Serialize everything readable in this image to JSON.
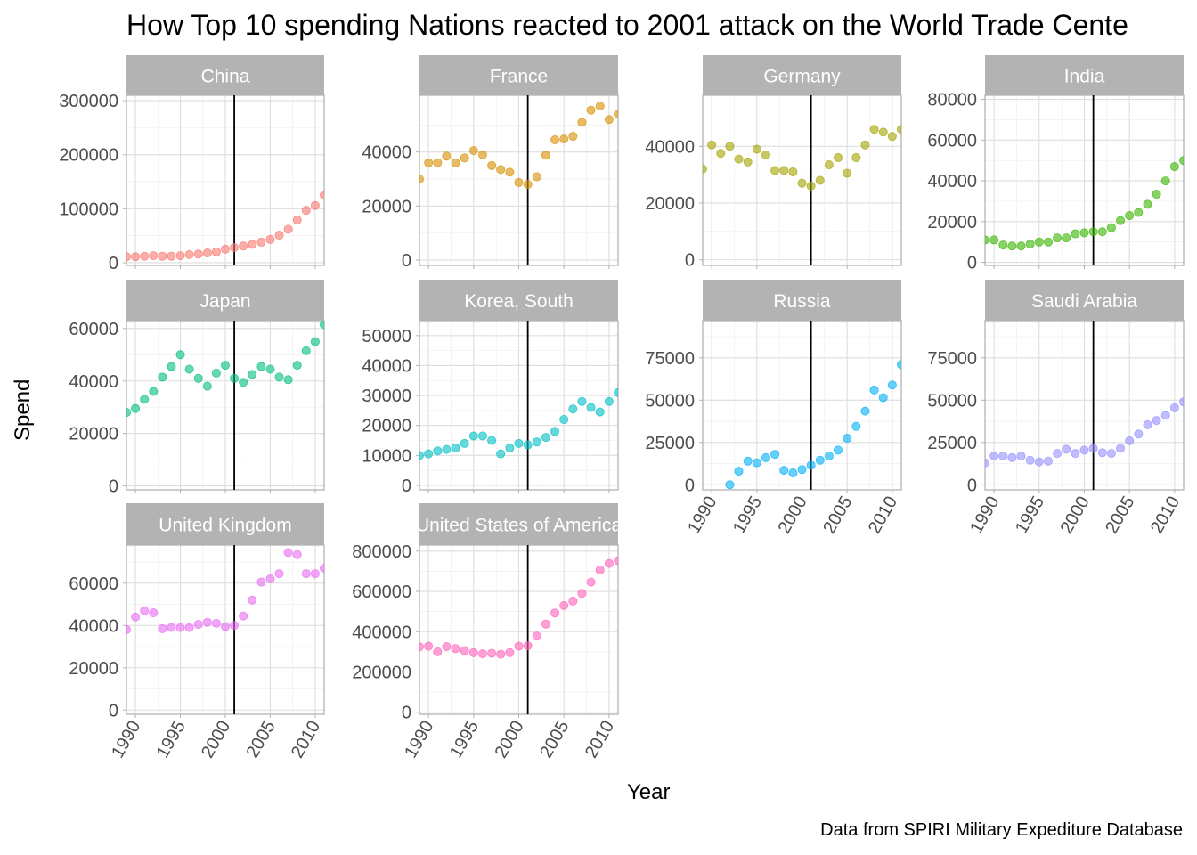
{
  "title": "How Top 10 spending Nations reacted to 2001 attack on the World Trade Cente",
  "caption": "Data from SPIRI Military Expediture Database",
  "chart_data": {
    "type": "scatter",
    "title": "How Top 10 spending Nations reacted to 2001 attack on the World Trade Cente",
    "xlabel": "Year",
    "ylabel": "Spend",
    "xlim": [
      1989,
      2011
    ],
    "x_ticks": [
      1990,
      1995,
      2000,
      2005,
      2010
    ],
    "vline_x": 2001,
    "facets": [
      {
        "name": "China",
        "color": "#F8766D",
        "ylim": [
          -5000,
          310000
        ],
        "y_ticks": [
          0,
          100000,
          200000,
          300000
        ],
        "x": [
          1989,
          1990,
          1991,
          1992,
          1993,
          1994,
          1995,
          1996,
          1997,
          1998,
          1999,
          2000,
          2001,
          2002,
          2003,
          2004,
          2005,
          2006,
          2007,
          2008,
          2009,
          2010,
          2011
        ],
        "y": [
          11000,
          11000,
          12000,
          13000,
          12000,
          12000,
          13000,
          15000,
          16000,
          18000,
          20000,
          25000,
          28000,
          31000,
          34000,
          38000,
          43000,
          51000,
          62000,
          79000,
          97000,
          106000,
          125000
        ]
      },
      {
        "name": "France",
        "color": "#D89000",
        "ylim": [
          -2000,
          61000
        ],
        "y_ticks": [
          0,
          20000,
          40000
        ],
        "x": [
          1989,
          1990,
          1991,
          1992,
          1993,
          1994,
          1995,
          1996,
          1997,
          1998,
          1999,
          2000,
          2001,
          2002,
          2003,
          2004,
          2005,
          2006,
          2007,
          2008,
          2009,
          2010,
          2011
        ],
        "y": [
          30000,
          36000,
          36000,
          38500,
          36000,
          37800,
          40500,
          39000,
          35000,
          33500,
          32500,
          28700,
          28000,
          30800,
          38800,
          44500,
          44800,
          45800,
          51000,
          55500,
          57000,
          52000,
          54000
        ]
      },
      {
        "name": "Germany",
        "color": "#A3A500",
        "ylim": [
          -2000,
          58000
        ],
        "y_ticks": [
          0,
          20000,
          40000
        ],
        "x": [
          1989,
          1990,
          1991,
          1992,
          1993,
          1994,
          1995,
          1996,
          1997,
          1998,
          1999,
          2000,
          2001,
          2002,
          2003,
          2004,
          2005,
          2006,
          2007,
          2008,
          2009,
          2010,
          2011
        ],
        "y": [
          32000,
          40500,
          37500,
          40000,
          35500,
          34500,
          39000,
          37000,
          31500,
          31500,
          31000,
          27000,
          26000,
          28000,
          33500,
          36000,
          30500,
          36000,
          40500,
          46000,
          45000,
          43500,
          46000
        ]
      },
      {
        "name": "India",
        "color": "#39B600",
        "ylim": [
          -1500,
          82000
        ],
        "y_ticks": [
          0,
          20000,
          40000,
          60000,
          80000
        ],
        "x": [
          1989,
          1990,
          1991,
          1992,
          1993,
          1994,
          1995,
          1996,
          1997,
          1998,
          1999,
          2000,
          2001,
          2002,
          2003,
          2004,
          2005,
          2006,
          2007,
          2008,
          2009,
          2010,
          2011
        ],
        "y": [
          11000,
          11000,
          8500,
          8000,
          8000,
          9000,
          10000,
          10000,
          12000,
          12000,
          14000,
          14500,
          15000,
          15000,
          17000,
          20500,
          23000,
          24500,
          28500,
          33500,
          40000,
          47000,
          50000
        ]
      },
      {
        "name": "Japan",
        "color": "#00BF7D",
        "ylim": [
          -1500,
          63000
        ],
        "y_ticks": [
          0,
          20000,
          40000,
          60000
        ],
        "x": [
          1989,
          1990,
          1991,
          1992,
          1993,
          1994,
          1995,
          1996,
          1997,
          1998,
          1999,
          2000,
          2001,
          2002,
          2003,
          2004,
          2005,
          2006,
          2007,
          2008,
          2009,
          2010,
          2011
        ],
        "y": [
          28000,
          29500,
          33000,
          36000,
          41500,
          45500,
          50000,
          44500,
          41000,
          38000,
          43000,
          46000,
          41000,
          39500,
          42500,
          45500,
          44500,
          41500,
          40500,
          46000,
          51500,
          55000,
          61500
        ]
      },
      {
        "name": "Korea, South",
        "color": "#00BFC4",
        "ylim": [
          -1500,
          55000
        ],
        "y_ticks": [
          0,
          10000,
          20000,
          30000,
          40000,
          50000
        ],
        "x": [
          1989,
          1990,
          1991,
          1992,
          1993,
          1994,
          1995,
          1996,
          1997,
          1998,
          1999,
          2000,
          2001,
          2002,
          2003,
          2004,
          2005,
          2006,
          2007,
          2008,
          2009,
          2010,
          2011
        ],
        "y": [
          10000,
          10500,
          11500,
          12000,
          12500,
          14000,
          16500,
          16500,
          15000,
          10500,
          12500,
          14000,
          13500,
          14500,
          16000,
          18000,
          22000,
          25500,
          28000,
          26000,
          24500,
          28000,
          31000
        ]
      },
      {
        "name": "Russia",
        "color": "#00B0F6",
        "ylim": [
          -3000,
          97000
        ],
        "y_ticks": [
          0,
          25000,
          50000,
          75000
        ],
        "x": [
          1992,
          1993,
          1994,
          1995,
          1996,
          1997,
          1998,
          1999,
          2000,
          2001,
          2002,
          2003,
          2004,
          2005,
          2006,
          2007,
          2008,
          2009,
          2010,
          2011
        ],
        "y": [
          0,
          8000,
          14000,
          13000,
          16000,
          18000,
          8500,
          7000,
          9000,
          11500,
          14500,
          17000,
          20500,
          27500,
          34500,
          43500,
          56000,
          51500,
          59000,
          71000
        ]
      },
      {
        "name": "Saudi Arabia",
        "color": "#9590FF",
        "ylim": [
          -3000,
          97000
        ],
        "y_ticks": [
          0,
          25000,
          50000,
          75000
        ],
        "x": [
          1989,
          1990,
          1991,
          1992,
          1993,
          1994,
          1995,
          1996,
          1997,
          1998,
          1999,
          2000,
          2001,
          2002,
          2003,
          2004,
          2005,
          2006,
          2007,
          2008,
          2009,
          2010,
          2011
        ],
        "y": [
          13000,
          17000,
          17000,
          16000,
          17000,
          14500,
          13500,
          14000,
          18500,
          21000,
          18500,
          20500,
          21500,
          19000,
          18500,
          21500,
          26000,
          30000,
          35500,
          38000,
          41000,
          45500,
          49000
        ]
      },
      {
        "name": "United Kingdom",
        "color": "#E76BF3",
        "ylim": [
          -2000,
          78000
        ],
        "y_ticks": [
          0,
          20000,
          40000,
          60000
        ],
        "x": [
          1989,
          1990,
          1991,
          1992,
          1993,
          1994,
          1995,
          1996,
          1997,
          1998,
          1999,
          2000,
          2001,
          2002,
          2003,
          2004,
          2005,
          2006,
          2007,
          2008,
          2009,
          2010,
          2011
        ],
        "y": [
          38000,
          44000,
          47000,
          46000,
          38500,
          39000,
          39000,
          39000,
          40500,
          41500,
          41000,
          39500,
          40000,
          44500,
          52000,
          60500,
          62000,
          64500,
          74500,
          73500,
          64500,
          64500,
          67000
        ]
      },
      {
        "name": "United States of America",
        "color": "#FF62BC",
        "ylim": [
          -10000,
          830000
        ],
        "y_ticks": [
          0,
          200000,
          400000,
          600000,
          800000
        ],
        "x": [
          1989,
          1990,
          1991,
          1992,
          1993,
          1994,
          1995,
          1996,
          1997,
          1998,
          1999,
          2000,
          2001,
          2002,
          2003,
          2004,
          2005,
          2006,
          2007,
          2008,
          2009,
          2010,
          2011
        ],
        "y": [
          325000,
          328000,
          300000,
          326000,
          316000,
          306000,
          296000,
          290000,
          293000,
          288000,
          296000,
          328000,
          330000,
          378000,
          438000,
          493000,
          530000,
          552000,
          590000,
          646000,
          706000,
          739000,
          752000
        ]
      }
    ]
  }
}
